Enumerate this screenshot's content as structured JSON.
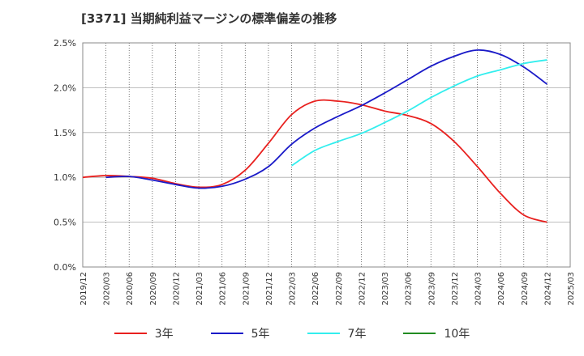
{
  "chart_data": {
    "type": "line",
    "title": "[3371]  当期純利益マージンの標準偏差の推移",
    "xlabel": "",
    "ylabel": "",
    "ylim": [
      0,
      2.5
    ],
    "yticks": [
      0,
      0.5,
      1.0,
      1.5,
      2.0,
      2.5
    ],
    "ytick_labels": [
      "0.0%",
      "0.5%",
      "1.0%",
      "1.5%",
      "2.0%",
      "2.5%"
    ],
    "xtick_labels": [
      "2019/12",
      "2020/03",
      "2020/06",
      "2020/09",
      "2020/12",
      "2021/03",
      "2021/06",
      "2021/09",
      "2021/12",
      "2022/03",
      "2022/06",
      "2022/09",
      "2022/12",
      "2023/03",
      "2023/06",
      "2023/09",
      "2023/12",
      "2024/03",
      "2024/06",
      "2024/09",
      "2024/12",
      "2025/03"
    ],
    "grid": true,
    "legend_position": "bottom",
    "series": [
      {
        "name": "3年",
        "color": "#e8201e",
        "points": [
          [
            "2019/12",
            1.0
          ],
          [
            "2020/03",
            1.02
          ],
          [
            "2020/06",
            1.01
          ],
          [
            "2020/09",
            0.99
          ],
          [
            "2020/12",
            0.93
          ],
          [
            "2021/03",
            0.89
          ],
          [
            "2021/06",
            0.92
          ],
          [
            "2021/09",
            1.08
          ],
          [
            "2021/12",
            1.38
          ],
          [
            "2022/03",
            1.7
          ],
          [
            "2022/06",
            1.85
          ],
          [
            "2022/09",
            1.85
          ],
          [
            "2022/12",
            1.81
          ],
          [
            "2023/03",
            1.74
          ],
          [
            "2023/06",
            1.69
          ],
          [
            "2023/09",
            1.6
          ],
          [
            "2023/12",
            1.4
          ],
          [
            "2024/03",
            1.12
          ],
          [
            "2024/06",
            0.82
          ],
          [
            "2024/09",
            0.58
          ],
          [
            "2024/12",
            0.5
          ]
        ]
      },
      {
        "name": "5年",
        "color": "#1a1ac8",
        "points": [
          [
            "2020/03",
            1.0
          ],
          [
            "2020/06",
            1.01
          ],
          [
            "2020/09",
            0.97
          ],
          [
            "2020/12",
            0.92
          ],
          [
            "2021/03",
            0.88
          ],
          [
            "2021/06",
            0.9
          ],
          [
            "2021/09",
            0.98
          ],
          [
            "2021/12",
            1.12
          ],
          [
            "2022/03",
            1.37
          ],
          [
            "2022/06",
            1.55
          ],
          [
            "2022/09",
            1.68
          ],
          [
            "2022/12",
            1.8
          ],
          [
            "2023/03",
            1.94
          ],
          [
            "2023/06",
            2.09
          ],
          [
            "2023/09",
            2.24
          ],
          [
            "2023/12",
            2.35
          ],
          [
            "2024/03",
            2.42
          ],
          [
            "2024/06",
            2.37
          ],
          [
            "2024/09",
            2.23
          ],
          [
            "2024/12",
            2.04
          ]
        ]
      },
      {
        "name": "7年",
        "color": "#33eeee",
        "points": [
          [
            "2022/03",
            1.13
          ],
          [
            "2022/06",
            1.3
          ],
          [
            "2022/09",
            1.4
          ],
          [
            "2022/12",
            1.49
          ],
          [
            "2023/03",
            1.61
          ],
          [
            "2023/06",
            1.74
          ],
          [
            "2023/09",
            1.89
          ],
          [
            "2023/12",
            2.02
          ],
          [
            "2024/03",
            2.13
          ],
          [
            "2024/06",
            2.2
          ],
          [
            "2024/09",
            2.27
          ],
          [
            "2024/12",
            2.31
          ]
        ]
      },
      {
        "name": "10年",
        "color": "#228b22",
        "points": []
      }
    ]
  }
}
